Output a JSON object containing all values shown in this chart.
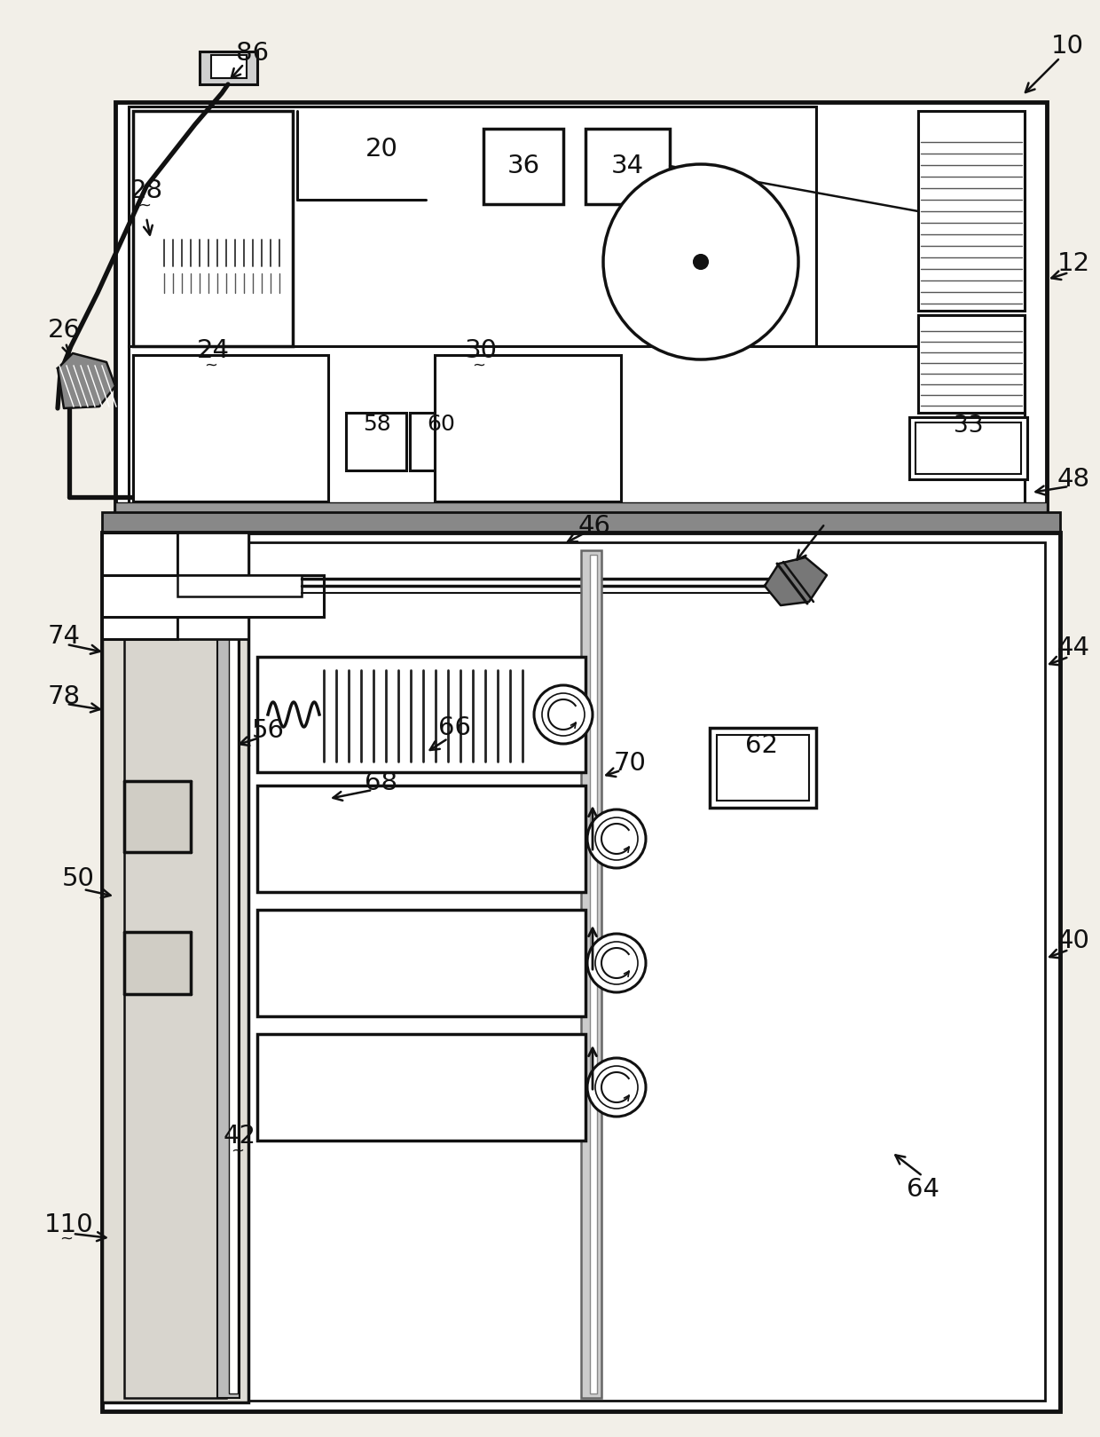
{
  "bg_color": "#f2efe8",
  "lc": "#111111",
  "fig_w": 12.4,
  "fig_h": 16.19,
  "dpi": 100
}
